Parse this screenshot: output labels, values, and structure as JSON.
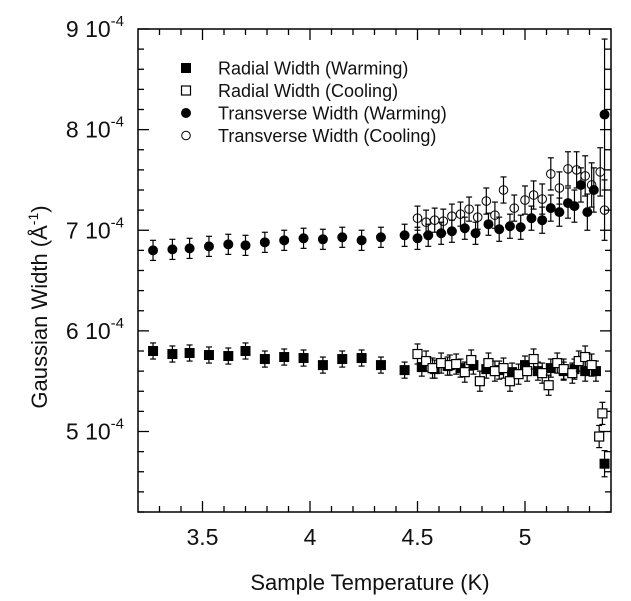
{
  "chart_data": {
    "type": "scatter",
    "xlabel": "Sample Temperature (K)",
    "ylabel_main": "Gaussian Width (Å",
    "ylabel_sup": "-1",
    "ylabel_close": ")",
    "xlim": [
      3.2,
      5.4
    ],
    "ylim": [
      0.00042,
      0.0009
    ],
    "x_ticks": [
      {
        "value": 3.5,
        "label": "3.5"
      },
      {
        "value": 4.0,
        "label": "4"
      },
      {
        "value": 4.5,
        "label": "4.5"
      },
      {
        "value": 5.0,
        "label": "5"
      }
    ],
    "y_ticks": [
      {
        "value": 0.0005,
        "mant": "5 10",
        "exp": "-4"
      },
      {
        "value": 0.0006,
        "mant": "6 10",
        "exp": "-4"
      },
      {
        "value": 0.0007,
        "mant": "7 10",
        "exp": "-4"
      },
      {
        "value": 0.0008,
        "mant": "8 10",
        "exp": "-4"
      },
      {
        "value": 0.0009,
        "mant": "9 10",
        "exp": "-4"
      }
    ],
    "legend_position": "top-right",
    "series": [
      {
        "name": "Radial Width (Warming)",
        "marker": "filled-square",
        "points": [
          [
            3.27,
            0.00058,
            8e-06
          ],
          [
            3.36,
            0.000577,
            8e-06
          ],
          [
            3.44,
            0.000578,
            8e-06
          ],
          [
            3.53,
            0.000576,
            8e-06
          ],
          [
            3.62,
            0.000575,
            8e-06
          ],
          [
            3.7,
            0.00058,
            8e-06
          ],
          [
            3.79,
            0.000572,
            8e-06
          ],
          [
            3.88,
            0.000574,
            8e-06
          ],
          [
            3.97,
            0.000573,
            8e-06
          ],
          [
            4.06,
            0.000566,
            8e-06
          ],
          [
            4.15,
            0.000572,
            8e-06
          ],
          [
            4.24,
            0.000573,
            8e-06
          ],
          [
            4.33,
            0.000566,
            8e-06
          ],
          [
            4.44,
            0.000561,
            8e-06
          ],
          [
            4.52,
            0.000564,
            9e-06
          ],
          [
            4.58,
            0.000562,
            9e-06
          ],
          [
            4.64,
            0.000565,
            9e-06
          ],
          [
            4.7,
            0.000563,
            9e-06
          ],
          [
            4.76,
            0.000566,
            9e-06
          ],
          [
            4.82,
            0.000562,
            9e-06
          ],
          [
            4.88,
            0.000561,
            9e-06
          ],
          [
            4.94,
            0.000559,
            9e-06
          ],
          [
            5.0,
            0.000566,
            9e-06
          ],
          [
            5.06,
            0.00056,
            9e-06
          ],
          [
            5.12,
            0.000563,
            9e-06
          ],
          [
            5.18,
            0.00056,
            9e-06
          ],
          [
            5.23,
            0.000562,
            1e-05
          ],
          [
            5.28,
            0.00056,
            1e-05
          ],
          [
            5.33,
            0.00056,
            1e-05
          ],
          [
            5.37,
            0.000468,
            1.3e-05
          ]
        ]
      },
      {
        "name": "Radial Width (Cooling)",
        "marker": "open-square",
        "points": [
          [
            4.5,
            0.000577,
            1e-05
          ],
          [
            4.54,
            0.00057,
            1e-05
          ],
          [
            4.57,
            0.000563,
            1e-05
          ],
          [
            4.61,
            0.000568,
            1e-05
          ],
          [
            4.65,
            0.000566,
            1e-05
          ],
          [
            4.68,
            0.000567,
            1e-05
          ],
          [
            4.72,
            0.000559,
            1e-05
          ],
          [
            4.75,
            0.000571,
            1e-05
          ],
          [
            4.79,
            0.00055,
            1e-05
          ],
          [
            4.83,
            0.000568,
            1e-05
          ],
          [
            4.86,
            0.00056,
            1e-05
          ],
          [
            4.9,
            0.000563,
            1e-05
          ],
          [
            4.93,
            0.00055,
            1e-05
          ],
          [
            4.97,
            0.000557,
            1e-05
          ],
          [
            5.01,
            0.00056,
            1e-05
          ],
          [
            5.04,
            0.000572,
            1e-05
          ],
          [
            5.08,
            0.000558,
            1e-05
          ],
          [
            5.11,
            0.000546,
            1e-05
          ],
          [
            5.15,
            0.000568,
            1e-05
          ],
          [
            5.18,
            0.000562,
            1e-05
          ],
          [
            5.22,
            0.000558,
            1e-05
          ],
          [
            5.25,
            0.00057,
            1e-05
          ],
          [
            5.28,
            0.000574,
            1.1e-05
          ],
          [
            5.31,
            0.000566,
            1.1e-05
          ],
          [
            5.345,
            0.000495,
            1.1e-05
          ],
          [
            5.36,
            0.000518,
            1.1e-05
          ]
        ]
      },
      {
        "name": "Transverse Width (Warming)",
        "marker": "filled-circle",
        "points": [
          [
            3.27,
            0.00068,
            1e-05
          ],
          [
            3.36,
            0.000681,
            1e-05
          ],
          [
            3.44,
            0.000682,
            1e-05
          ],
          [
            3.53,
            0.000684,
            1e-05
          ],
          [
            3.62,
            0.000686,
            1e-05
          ],
          [
            3.7,
            0.000685,
            1e-05
          ],
          [
            3.79,
            0.000688,
            1e-05
          ],
          [
            3.88,
            0.00069,
            1e-05
          ],
          [
            3.97,
            0.000692,
            1e-05
          ],
          [
            4.06,
            0.000691,
            1e-05
          ],
          [
            4.15,
            0.000693,
            1e-05
          ],
          [
            4.24,
            0.00069,
            1e-05
          ],
          [
            4.33,
            0.000693,
            1e-05
          ],
          [
            4.44,
            0.000695,
            1.1e-05
          ],
          [
            4.5,
            0.000692,
            1.1e-05
          ],
          [
            4.55,
            0.000695,
            1.1e-05
          ],
          [
            4.61,
            0.000697,
            1.1e-05
          ],
          [
            4.66,
            0.000699,
            1.1e-05
          ],
          [
            4.72,
            0.000702,
            1.1e-05
          ],
          [
            4.77,
            0.000697,
            1.1e-05
          ],
          [
            4.83,
            0.000706,
            1.1e-05
          ],
          [
            4.88,
            0.000701,
            1.2e-05
          ],
          [
            4.93,
            0.000704,
            1.2e-05
          ],
          [
            4.98,
            0.000703,
            1.2e-05
          ],
          [
            5.03,
            0.000712,
            1.2e-05
          ],
          [
            5.08,
            0.00071,
            1.3e-05
          ],
          [
            5.12,
            0.000722,
            1.3e-05
          ],
          [
            5.16,
            0.000718,
            1.4e-05
          ],
          [
            5.2,
            0.000727,
            1.5e-05
          ],
          [
            5.23,
            0.000724,
            1.6e-05
          ],
          [
            5.26,
            0.000745,
            1.7e-05
          ],
          [
            5.29,
            0.000718,
            1.8e-05
          ],
          [
            5.32,
            0.00074,
            2.2e-05
          ],
          [
            5.37,
            0.000815,
            7.5e-05
          ]
        ]
      },
      {
        "name": "Transverse Width (Cooling)",
        "marker": "open-circle",
        "points": [
          [
            4.5,
            0.000712,
            1.2e-05
          ],
          [
            4.54,
            0.000708,
            1.2e-05
          ],
          [
            4.58,
            0.00071,
            1.2e-05
          ],
          [
            4.62,
            0.000709,
            1.2e-05
          ],
          [
            4.66,
            0.000714,
            1.2e-05
          ],
          [
            4.7,
            0.000716,
            1.2e-05
          ],
          [
            4.74,
            0.000721,
            1.2e-05
          ],
          [
            4.78,
            0.000713,
            1.2e-05
          ],
          [
            4.82,
            0.000729,
            1.3e-05
          ],
          [
            4.86,
            0.000715,
            1.3e-05
          ],
          [
            4.9,
            0.00074,
            1.3e-05
          ],
          [
            4.95,
            0.000722,
            1.3e-05
          ],
          [
            5.0,
            0.00073,
            1.4e-05
          ],
          [
            5.04,
            0.000735,
            1.4e-05
          ],
          [
            5.08,
            0.000731,
            1.5e-05
          ],
          [
            5.12,
            0.000756,
            1.6e-05
          ],
          [
            5.16,
            0.000742,
            1.6e-05
          ],
          [
            5.2,
            0.000761,
            1.7e-05
          ],
          [
            5.24,
            0.00076,
            1.8e-05
          ],
          [
            5.28,
            0.000754,
            2e-05
          ],
          [
            5.31,
            0.000745,
            2.2e-05
          ],
          [
            5.35,
            0.000758,
            2.4e-05
          ],
          [
            5.37,
            0.00072,
            3e-05
          ]
        ]
      }
    ]
  }
}
